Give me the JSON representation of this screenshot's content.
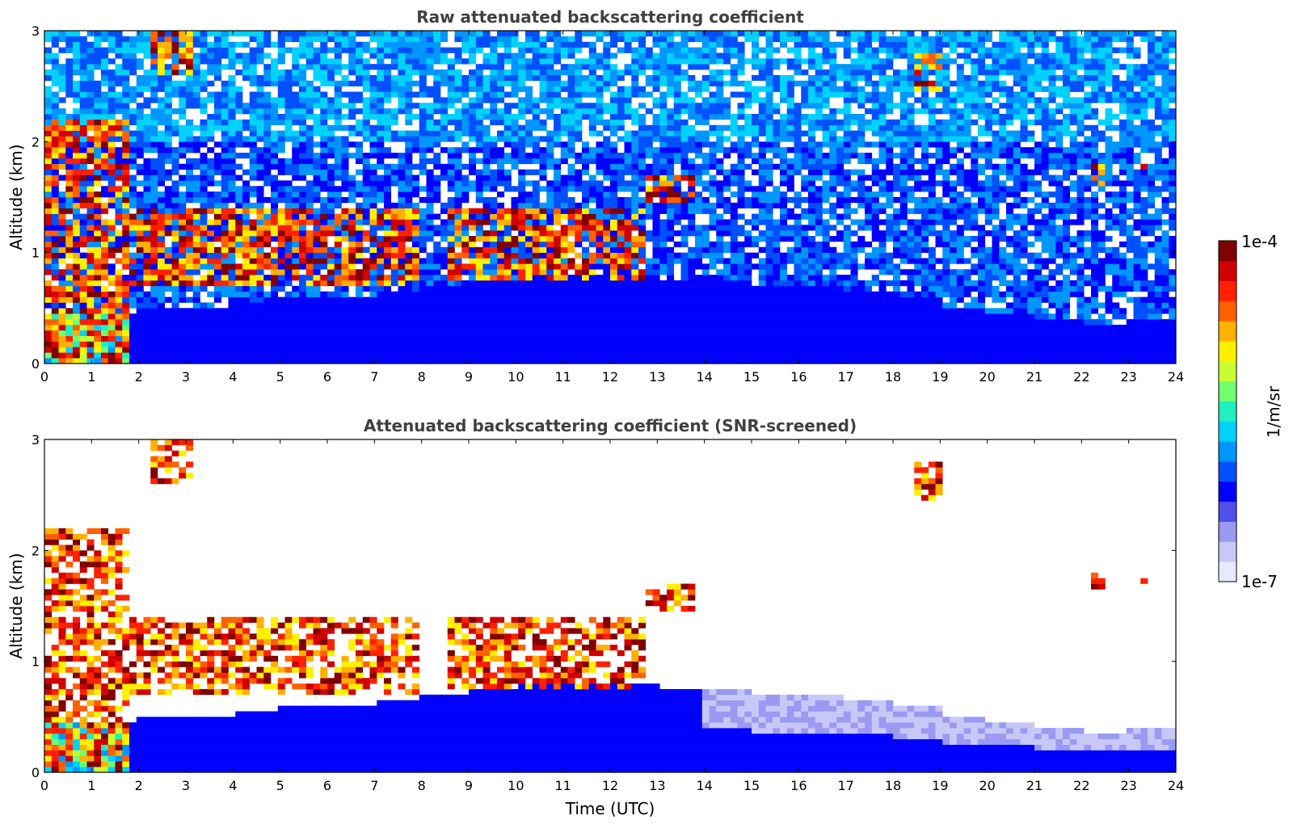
{
  "chart_data": [
    {
      "type": "heatmap",
      "title": "Raw attenuated backscattering coefficient",
      "xlabel": "",
      "ylabel": "Altitude (km)",
      "xlim": [
        0,
        24
      ],
      "ylim": [
        0,
        3
      ],
      "x_ticks": [
        "0",
        "1",
        "2",
        "3",
        "4",
        "5",
        "6",
        "7",
        "8",
        "9",
        "10",
        "11",
        "12",
        "13",
        "14",
        "15",
        "16",
        "17",
        "18",
        "19",
        "20",
        "21",
        "22",
        "23",
        "24"
      ],
      "y_ticks": [
        "0",
        "1",
        "2",
        "3"
      ],
      "boundary_layer_top_km": [
        0.45,
        0.45,
        0.5,
        0.5,
        0.55,
        0.6,
        0.6,
        0.65,
        0.7,
        0.75,
        0.8,
        0.8,
        0.8,
        0.75,
        0.75,
        0.7,
        0.7,
        0.65,
        0.6,
        0.5,
        0.45,
        0.4,
        0.35,
        0.4
      ],
      "cloud_features": [
        {
          "t_start": 0.0,
          "t_end": 1.8,
          "alt_low": 0.0,
          "alt_high": 2.2,
          "level": "high"
        },
        {
          "t_start": 2.2,
          "t_end": 3.2,
          "alt_low": 2.6,
          "alt_high": 3.0,
          "level": "high"
        },
        {
          "t_start": 1.8,
          "t_end": 8.0,
          "alt_low": 0.7,
          "alt_high": 1.4,
          "level": "high"
        },
        {
          "t_start": 8.5,
          "t_end": 12.8,
          "alt_low": 0.75,
          "alt_high": 1.4,
          "level": "high"
        },
        {
          "t_start": 12.8,
          "t_end": 13.8,
          "alt_low": 1.45,
          "alt_high": 1.7,
          "level": "high"
        },
        {
          "t_start": 18.4,
          "t_end": 19.1,
          "alt_low": 2.45,
          "alt_high": 2.8,
          "level": "high"
        },
        {
          "t_start": 22.2,
          "t_end": 22.5,
          "alt_low": 1.6,
          "alt_high": 1.8,
          "level": "high"
        },
        {
          "t_start": 23.2,
          "t_end": 23.4,
          "alt_low": 1.6,
          "alt_high": 1.8,
          "level": "high"
        }
      ]
    },
    {
      "type": "heatmap",
      "title": "Attenuated backscattering coefficient (SNR-screened)",
      "xlabel": "Time (UTC)",
      "ylabel": "Altitude (km)",
      "xlim": [
        0,
        24
      ],
      "ylim": [
        0,
        3
      ],
      "x_ticks": [
        "0",
        "1",
        "2",
        "3",
        "4",
        "5",
        "6",
        "7",
        "8",
        "9",
        "10",
        "11",
        "12",
        "13",
        "14",
        "15",
        "16",
        "17",
        "18",
        "19",
        "20",
        "21",
        "22",
        "23",
        "24"
      ],
      "y_ticks": [
        "0",
        "1",
        "2",
        "3"
      ],
      "boundary_layer_top_km": [
        0.45,
        0.45,
        0.5,
        0.5,
        0.55,
        0.6,
        0.6,
        0.65,
        0.7,
        0.75,
        0.8,
        0.8,
        0.8,
        0.75,
        0.75,
        0.7,
        0.7,
        0.65,
        0.6,
        0.5,
        0.45,
        0.4,
        0.35,
        0.4
      ]
    }
  ],
  "colorbar": {
    "min_label": "1e-7",
    "max_label": "1e-4",
    "unit_label": "1/m/sr",
    "scale": "log",
    "colors": [
      "#e8e8ff",
      "#c8c8f8",
      "#9a9af2",
      "#5050ec",
      "#0000ff",
      "#0050ff",
      "#0096ff",
      "#00d2ff",
      "#20f0c0",
      "#70ff70",
      "#c8ff30",
      "#fff000",
      "#ffb000",
      "#ff6000",
      "#ff2000",
      "#d00000",
      "#800000"
    ]
  }
}
